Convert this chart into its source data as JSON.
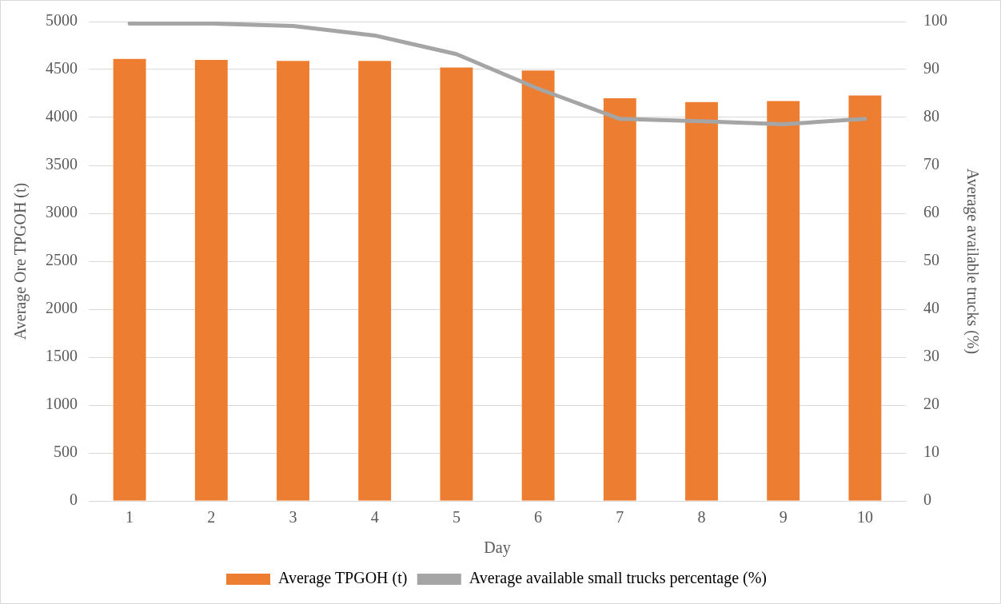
{
  "chart_data": {
    "type": "bar",
    "xlabel": "Day",
    "ylabel": "Average Ore TPGOH (t)",
    "y2label": "Average available trucks (%)",
    "categories": [
      "1",
      "2",
      "3",
      "4",
      "5",
      "6",
      "7",
      "8",
      "9",
      "10"
    ],
    "series": [
      {
        "name": "Average TPGOH (t)",
        "color": "#ed7d31",
        "values": [
          4610,
          4600,
          4590,
          4590,
          4520,
          4490,
          4200,
          4160,
          4170,
          4230
        ]
      },
      {
        "name": "Average available small trucks percentage (%)",
        "type": "line",
        "axis": "y2",
        "color": "#a5a5a5",
        "values": [
          99.6,
          99.6,
          99.1,
          97.1,
          93.2,
          86.0,
          79.7,
          79.2,
          78.6,
          79.7
        ]
      }
    ],
    "ylim": [
      0,
      5000
    ],
    "yticks": [
      0,
      500,
      1000,
      1500,
      2000,
      2500,
      3000,
      3500,
      4000,
      4500,
      5000
    ],
    "y2lim": [
      0,
      100
    ],
    "y2ticks": [
      0,
      10,
      20,
      30,
      40,
      50,
      60,
      70,
      80,
      90,
      100
    ],
    "grid": "y",
    "legend": "bottom",
    "marker": "none"
  }
}
